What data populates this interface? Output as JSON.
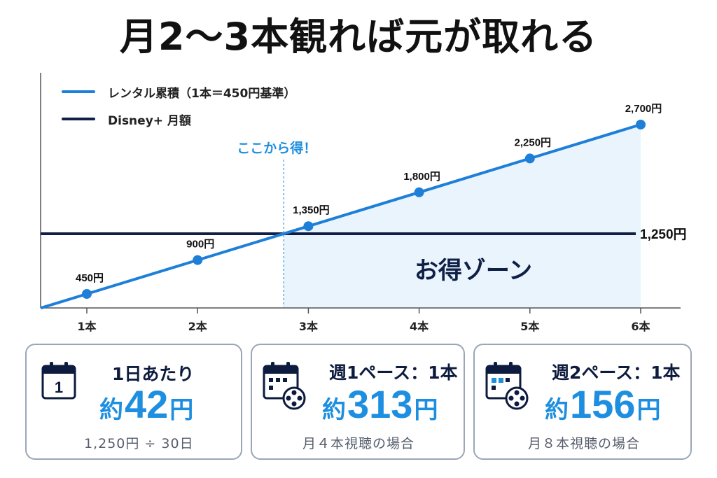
{
  "title": "月2〜3本観れば元が取れる",
  "legend": {
    "rental": "レンタル累積（1本＝450円基準）",
    "disney": "Disney+ 月額"
  },
  "colors": {
    "rental": "#1e7fd8",
    "disney": "#0f1f45",
    "zone_fill": "#e9f4fd",
    "accent": "#1e8fe0"
  },
  "chart_data": {
    "type": "line",
    "x": [
      "1本",
      "2本",
      "3本",
      "4本",
      "5本",
      "6本"
    ],
    "series": [
      {
        "name": "レンタル累積（1本＝450円基準）",
        "values": [
          450,
          900,
          1350,
          1800,
          2250,
          2700
        ]
      },
      {
        "name": "Disney+ 月額",
        "values": [
          1250,
          1250,
          1250,
          1250,
          1250,
          1250
        ]
      }
    ],
    "point_labels": [
      "450円",
      "900円",
      "1,350円",
      "1,800円",
      "2,250円",
      "2,700円"
    ],
    "flat_label": "1,250円",
    "annotation": "ここから得！",
    "zone_label": "お得ゾーン",
    "ylim": [
      0,
      2900
    ],
    "grid": false,
    "legend_position": "top-left"
  },
  "cards": [
    {
      "icon": "calendar-day-icon",
      "icon_text": "1",
      "head": "1日あたり",
      "prefix": "約",
      "value": "42",
      "suffix": "円",
      "sub": "1,250円 ÷ 30日"
    },
    {
      "icon": "calendar-film-icon",
      "head": "週1ペース：1本",
      "prefix": "約",
      "value": "313",
      "suffix": "円",
      "sub": "月４本視聴の場合"
    },
    {
      "icon": "calendar-film-icon",
      "head": "週2ペース：1本",
      "prefix": "約",
      "value": "156",
      "suffix": "円",
      "sub": "月８本視聴の場合"
    }
  ]
}
